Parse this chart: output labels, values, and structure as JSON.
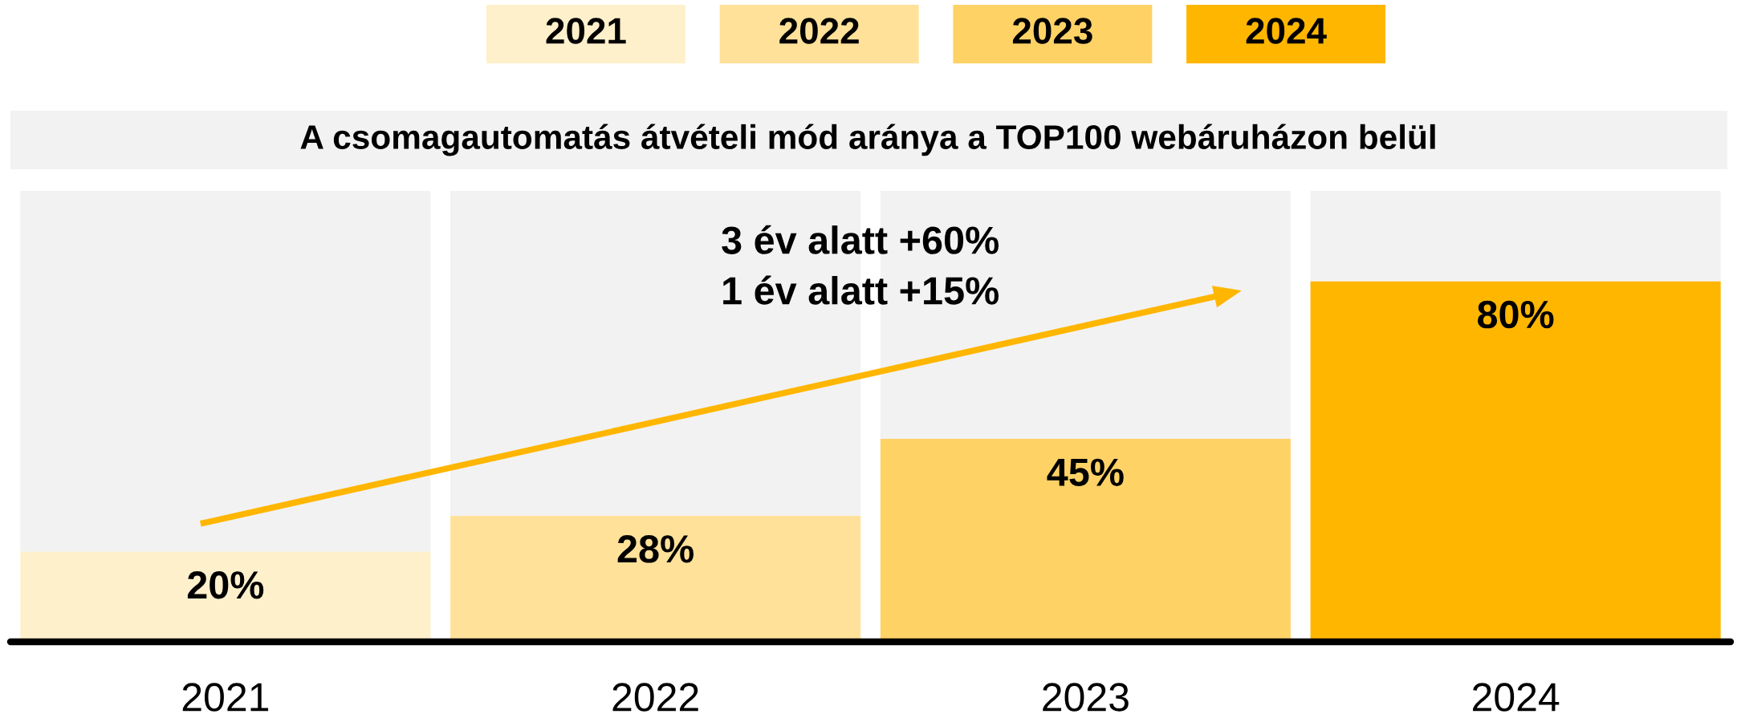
{
  "chart_data": {
    "type": "bar",
    "title": "A csomagautomatás átvételi mód aránya a TOP100 webáruházon belül",
    "categories": [
      "2021",
      "2022",
      "2023",
      "2024"
    ],
    "stacked": true,
    "series": [
      {
        "colors": [
          "#fff0cc",
          "#ffe199",
          "#ffd266",
          "#ffb600"
        ],
        "values": [
          20,
          28,
          45,
          80
        ],
        "value_labels": [
          "20%",
          "28%",
          "45%",
          "80%"
        ]
      },
      {
        "color": "#f2f2f2",
        "values": [
          80,
          72,
          55,
          20
        ]
      }
    ],
    "ylim": [
      0,
      100
    ],
    "tick_labels": "x",
    "grid": false,
    "annotations": [
      "3 év alatt +60%\n1 év alatt +15%"
    ]
  }
}
